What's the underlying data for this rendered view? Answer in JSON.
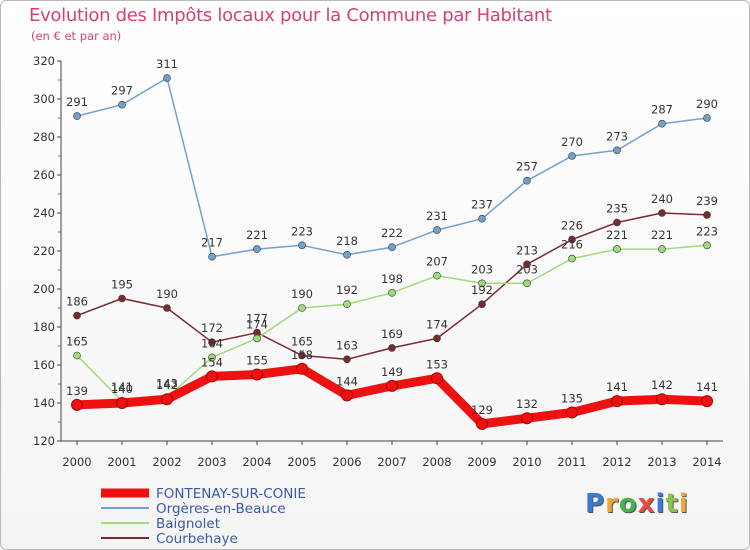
{
  "title": "Evolution des Impôts locaux pour la Commune par Habitant",
  "subtitle": "(en € et par an)",
  "logo": {
    "text": "Proxiti",
    "letters": [
      "P",
      "r",
      "o",
      "x",
      "i",
      "t",
      "i"
    ],
    "colors": [
      "#3a7bd5",
      "#e8a93a",
      "#4caf50",
      "#e84c3d",
      "#3a7bd5",
      "#8bc34a",
      "#e8a93a"
    ]
  },
  "chart_data": {
    "type": "line",
    "title": "Evolution des Impôts locaux pour la Commune par Habitant",
    "subtitle": "(en € et par an)",
    "xlabel": "",
    "ylabel": "",
    "x": [
      "2000",
      "2001",
      "2002",
      "2003",
      "2004",
      "2005",
      "2006",
      "2007",
      "2008",
      "2009",
      "2010",
      "2011",
      "2012",
      "2013",
      "2014"
    ],
    "ylim": [
      120,
      320
    ],
    "yticks": [
      120,
      140,
      160,
      180,
      200,
      220,
      240,
      260,
      280,
      300,
      320
    ],
    "grid": false,
    "legend_position": "bottom-left",
    "series": [
      {
        "name": "FONTENAY-SUR-CONIE",
        "color": "#ee1111",
        "values": [
          139,
          140,
          142,
          154,
          155,
          158,
          144,
          149,
          153,
          129,
          132,
          135,
          141,
          142,
          141
        ],
        "labels": [
          "139",
          "140",
          "142",
          "154",
          "155",
          "158",
          "144",
          "149",
          "153",
          "129",
          "132",
          "135",
          "141",
          "142",
          "141"
        ]
      },
      {
        "name": "Orgères-en-Beauce",
        "color": "#6fa1cf",
        "values": [
          291,
          297,
          311,
          217,
          221,
          223,
          218,
          222,
          231,
          237,
          257,
          270,
          273,
          287,
          290
        ],
        "labels": [
          "291",
          "297",
          "311",
          "217",
          "221",
          "223",
          "218",
          "222",
          "231",
          "237",
          "257",
          "270",
          "273",
          "287",
          "290"
        ]
      },
      {
        "name": "Baignolet",
        "color": "#9fdb7a",
        "values": [
          165,
          141,
          143,
          164,
          174,
          190,
          192,
          198,
          207,
          203,
          203,
          216,
          221,
          221,
          223
        ],
        "labels": [
          "165",
          "141",
          "143",
          "164",
          "174",
          "190",
          "192",
          "198",
          "207",
          "203",
          "203",
          "216",
          "221",
          "221",
          "223"
        ]
      },
      {
        "name": "Courbehaye",
        "color": "#7a2b30",
        "values": [
          186,
          195,
          190,
          172,
          177,
          165,
          163,
          169,
          174,
          192,
          213,
          226,
          235,
          240,
          239
        ],
        "labels": [
          "186",
          "195",
          "190",
          "172",
          "177",
          "165",
          "163",
          "169",
          "174",
          "192",
          "213",
          "226",
          "235",
          "240",
          "239"
        ]
      }
    ]
  }
}
